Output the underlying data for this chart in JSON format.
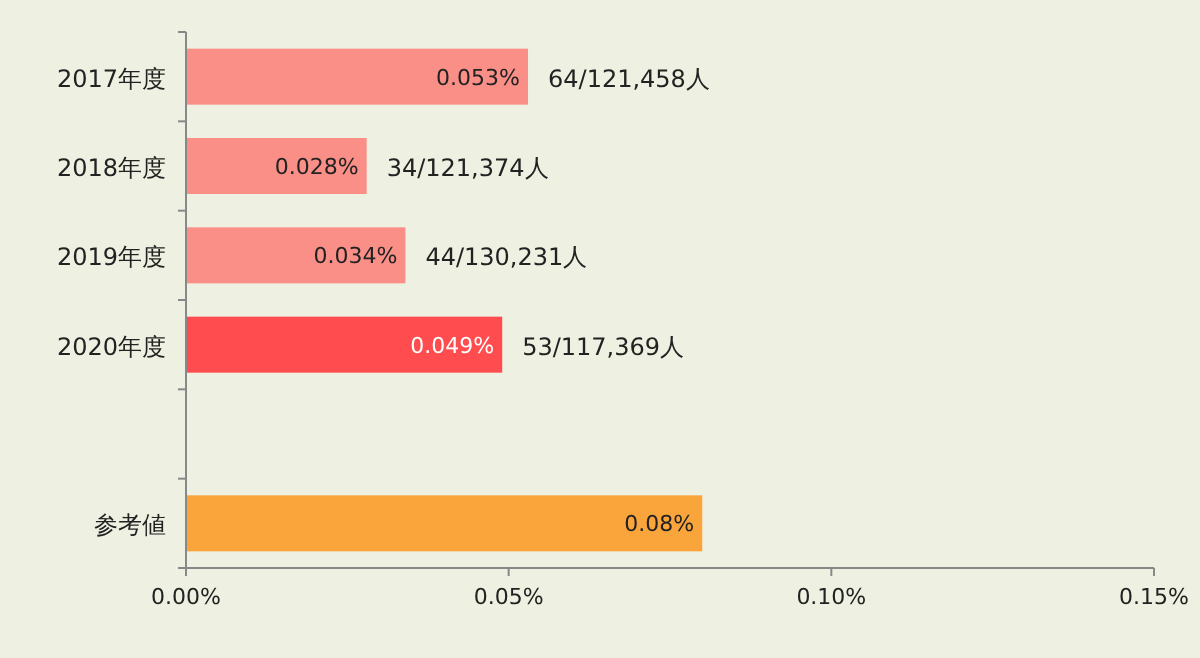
{
  "chart_data": {
    "type": "bar",
    "orientation": "horizontal",
    "categories": [
      "2017年度",
      "2018年度",
      "2019年度",
      "2020年度",
      null,
      "参考値"
    ],
    "values": [
      0.053,
      0.028,
      0.034,
      0.049,
      null,
      0.08
    ],
    "colors": [
      "#fa8f88",
      "#fa8f88",
      "#fa8f88",
      "#ff4d4f",
      null,
      "#f9a53c"
    ],
    "value_labels": [
      "0.053%",
      "0.028%",
      "0.034%",
      "0.049%",
      null,
      "0.08%"
    ],
    "xlim": [
      0,
      0.15
    ],
    "xticks": [
      {
        "value": 0,
        "label": "0.00%"
      },
      {
        "value": 0.05,
        "label": "0.05%"
      },
      {
        "value": 0.1,
        "label": "0.10%"
      },
      {
        "value": 0.15,
        "label": "0.15%"
      }
    ],
    "annotations": [
      {
        "text": "64/121,458人",
        "x": 0.053,
        "y": "2017年度"
      },
      {
        "text": "34/121,374人",
        "x": 0.028,
        "y": "2018年度"
      },
      {
        "text": "44/130,231人",
        "x": 0.034,
        "y": "2019年度"
      },
      {
        "text": "53/117,369人",
        "x": 0.049,
        "y": "2020年度"
      }
    ],
    "grid": false
  }
}
